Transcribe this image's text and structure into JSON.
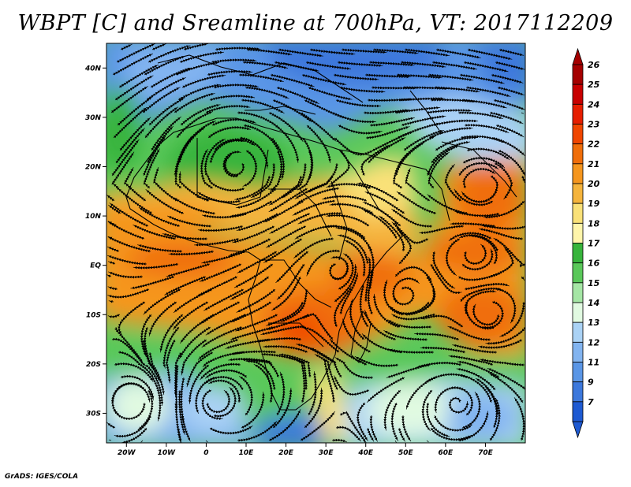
{
  "title": "WBPT [C] and Sreamline at 700hPa, VT: 2017112209",
  "credit": "GrADS: IGES/COLA",
  "map": {
    "lon_range": [
      -25,
      80
    ],
    "lat_range": [
      -36,
      45
    ],
    "lat_ticks": [
      {
        "value": 40,
        "label": "40N"
      },
      {
        "value": 30,
        "label": "30N"
      },
      {
        "value": 20,
        "label": "20N"
      },
      {
        "value": 10,
        "label": "10N"
      },
      {
        "value": 0,
        "label": "EQ"
      },
      {
        "value": -10,
        "label": "10S"
      },
      {
        "value": -20,
        "label": "20S"
      },
      {
        "value": -30,
        "label": "30S"
      }
    ],
    "lon_ticks": [
      {
        "value": -20,
        "label": "20W"
      },
      {
        "value": -10,
        "label": "10W"
      },
      {
        "value": 0,
        "label": "0"
      },
      {
        "value": 10,
        "label": "10E"
      },
      {
        "value": 20,
        "label": "20E"
      },
      {
        "value": 30,
        "label": "30E"
      },
      {
        "value": 40,
        "label": "40E"
      },
      {
        "value": 50,
        "label": "50E"
      },
      {
        "value": 60,
        "label": "60E"
      },
      {
        "value": 70,
        "label": "70E"
      }
    ]
  },
  "colorbar": {
    "levels": [
      {
        "label": "26",
        "color": "#a50000"
      },
      {
        "label": "25",
        "color": "#c80000"
      },
      {
        "label": "24",
        "color": "#e61e00"
      },
      {
        "label": "23",
        "color": "#f04600"
      },
      {
        "label": "22",
        "color": "#f06e0a"
      },
      {
        "label": "21",
        "color": "#f5961e"
      },
      {
        "label": "20",
        "color": "#f5b43c"
      },
      {
        "label": "19",
        "color": "#fae178"
      },
      {
        "label": "18",
        "color": "#fff5aa"
      },
      {
        "label": "17",
        "color": "#37b43c"
      },
      {
        "label": "16",
        "color": "#5ac85a"
      },
      {
        "label": "15",
        "color": "#a5e6a5"
      },
      {
        "label": "14",
        "color": "#e1fae1"
      },
      {
        "label": "13",
        "color": "#aad2f5"
      },
      {
        "label": "12",
        "color": "#82b4f0"
      },
      {
        "label": "11",
        "color": "#5a96e6"
      },
      {
        "label": "9",
        "color": "#3c78dc"
      },
      {
        "label": "7",
        "color": "#1e5ad2"
      }
    ]
  }
}
